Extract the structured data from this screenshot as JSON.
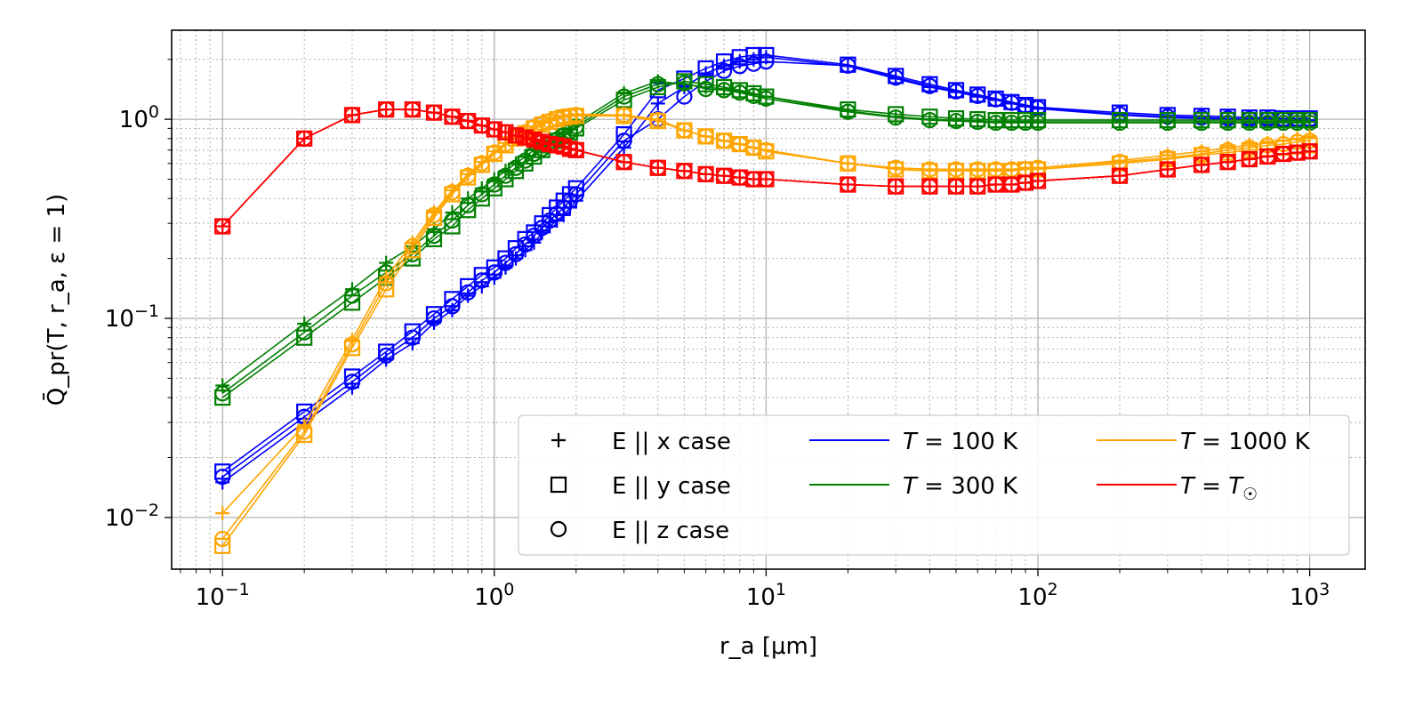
{
  "chart_data": {
    "type": "line",
    "xlabel": "r_a [μm]",
    "ylabel": "Q̄_pr(T, r_a, ε = 1)",
    "xscale": "log",
    "yscale": "log",
    "xlim": [
      0.065,
      1600
    ],
    "ylim": [
      0.0055,
      2.8
    ],
    "grid": true,
    "legend_position": "lower-right",
    "x_ticks": [
      {
        "value": 0.1,
        "base": "10",
        "exp": "−1"
      },
      {
        "value": 1,
        "base": "10",
        "exp": "0"
      },
      {
        "value": 10,
        "base": "10",
        "exp": "1"
      },
      {
        "value": 100,
        "base": "10",
        "exp": "2"
      },
      {
        "value": 1000,
        "base": "10",
        "exp": "3"
      }
    ],
    "y_ticks": [
      {
        "value": 0.01,
        "base": "10",
        "exp": "−2"
      },
      {
        "value": 0.1,
        "base": "10",
        "exp": "−1"
      },
      {
        "value": 1,
        "base": "10",
        "exp": "0"
      }
    ],
    "marker_legend": [
      {
        "marker": "plus",
        "label": "E || x case"
      },
      {
        "marker": "square",
        "label": "E || y case"
      },
      {
        "marker": "circle",
        "label": "E || z case"
      }
    ],
    "x": [
      0.1,
      0.2,
      0.3,
      0.4,
      0.5,
      0.6,
      0.7,
      0.8,
      0.9,
      1,
      1.1,
      1.2,
      1.3,
      1.4,
      1.5,
      1.6,
      1.7,
      1.8,
      1.9,
      2,
      3,
      4,
      5,
      6,
      7,
      8,
      9,
      10,
      20,
      30,
      40,
      50,
      60,
      70,
      80,
      90,
      100,
      200,
      300,
      400,
      500,
      600,
      700,
      800,
      900,
      1000
    ],
    "series": [
      {
        "name": "T = 100 K",
        "color": "#0000ff",
        "case": "x",
        "values": [
          0.015,
          0.03,
          0.045,
          0.062,
          0.075,
          0.095,
          0.11,
          0.13,
          0.145,
          0.16,
          0.18,
          0.2,
          0.22,
          0.24,
          0.27,
          0.29,
          0.31,
          0.33,
          0.36,
          0.39,
          0.72,
          1.2,
          1.45,
          1.7,
          1.85,
          1.95,
          2.0,
          2.05,
          1.85,
          1.6,
          1.45,
          1.37,
          1.3,
          1.25,
          1.2,
          1.16,
          1.13,
          1.05,
          1.02,
          1.01,
          1.0,
          1.0,
          1.0,
          0.99,
          0.99,
          0.99
        ]
      },
      {
        "name": "T = 100 K",
        "color": "#0000ff",
        "case": "y",
        "values": [
          0.017,
          0.034,
          0.051,
          0.068,
          0.086,
          0.105,
          0.125,
          0.145,
          0.165,
          0.18,
          0.2,
          0.225,
          0.25,
          0.27,
          0.3,
          0.33,
          0.36,
          0.39,
          0.42,
          0.45,
          0.84,
          1.4,
          1.6,
          1.8,
          1.95,
          2.05,
          2.1,
          2.1,
          1.88,
          1.65,
          1.5,
          1.4,
          1.33,
          1.27,
          1.22,
          1.18,
          1.15,
          1.08,
          1.05,
          1.04,
          1.03,
          1.02,
          1.02,
          1.01,
          1.01,
          1.01
        ]
      },
      {
        "name": "T = 100 K",
        "color": "#0000ff",
        "case": "z",
        "values": [
          0.016,
          0.032,
          0.048,
          0.065,
          0.08,
          0.1,
          0.115,
          0.135,
          0.155,
          0.17,
          0.19,
          0.21,
          0.235,
          0.26,
          0.285,
          0.31,
          0.335,
          0.36,
          0.39,
          0.42,
          0.78,
          1.0,
          1.3,
          1.55,
          1.75,
          1.85,
          1.9,
          1.95,
          1.86,
          1.62,
          1.47,
          1.38,
          1.31,
          1.26,
          1.21,
          1.17,
          1.14,
          1.06,
          1.03,
          1.02,
          1.01,
          1.0,
          1.0,
          1.0,
          1.0,
          1.0
        ]
      },
      {
        "name": "T = 300 K",
        "color": "#008000",
        "case": "x",
        "values": [
          0.046,
          0.094,
          0.14,
          0.19,
          0.23,
          0.28,
          0.34,
          0.4,
          0.45,
          0.5,
          0.55,
          0.6,
          0.65,
          0.7,
          0.74,
          0.78,
          0.82,
          0.86,
          0.9,
          0.95,
          1.35,
          1.55,
          1.5,
          1.45,
          1.42,
          1.38,
          1.33,
          1.3,
          1.1,
          1.03,
          1.0,
          0.99,
          0.98,
          0.97,
          0.97,
          0.97,
          0.97,
          0.97,
          0.97,
          0.97,
          0.97,
          0.97,
          0.97,
          0.97,
          0.97,
          0.97
        ]
      },
      {
        "name": "T = 300 K",
        "color": "#008000",
        "case": "y",
        "values": [
          0.04,
          0.08,
          0.12,
          0.16,
          0.2,
          0.25,
          0.29,
          0.35,
          0.4,
          0.45,
          0.5,
          0.55,
          0.6,
          0.65,
          0.7,
          0.74,
          0.78,
          0.82,
          0.86,
          0.9,
          1.25,
          1.45,
          1.55,
          1.5,
          1.45,
          1.4,
          1.35,
          1.3,
          1.12,
          1.06,
          1.03,
          1.01,
          1.0,
          0.99,
          0.99,
          0.99,
          0.99,
          0.99,
          0.99,
          0.99,
          0.99,
          0.99,
          0.99,
          0.99,
          0.99,
          0.99
        ]
      },
      {
        "name": "T = 300 K",
        "color": "#008000",
        "case": "z",
        "values": [
          0.042,
          0.085,
          0.13,
          0.17,
          0.21,
          0.26,
          0.31,
          0.37,
          0.42,
          0.47,
          0.52,
          0.57,
          0.62,
          0.67,
          0.71,
          0.75,
          0.79,
          0.83,
          0.87,
          0.92,
          1.3,
          1.5,
          1.52,
          1.42,
          1.4,
          1.36,
          1.31,
          1.27,
          1.09,
          1.02,
          0.99,
          0.98,
          0.97,
          0.96,
          0.96,
          0.96,
          0.96,
          0.96,
          0.96,
          0.96,
          0.96,
          0.96,
          0.96,
          0.96,
          0.96,
          0.96
        ]
      },
      {
        "name": "T = 1000 K",
        "color": "#ffa500",
        "case": "x",
        "values": [
          0.0105,
          0.029,
          0.078,
          0.16,
          0.24,
          0.34,
          0.44,
          0.53,
          0.61,
          0.69,
          0.76,
          0.82,
          0.87,
          0.92,
          0.96,
          0.99,
          1.02,
          1.04,
          1.05,
          1.06,
          1.05,
          1.0,
          0.88,
          0.82,
          0.78,
          0.75,
          0.72,
          0.7,
          0.6,
          0.57,
          0.56,
          0.56,
          0.56,
          0.56,
          0.56,
          0.57,
          0.57,
          0.62,
          0.66,
          0.69,
          0.72,
          0.74,
          0.76,
          0.78,
          0.8,
          0.82
        ]
      },
      {
        "name": "T = 1000 K",
        "color": "#ffa500",
        "case": "y",
        "values": [
          0.0072,
          0.026,
          0.071,
          0.14,
          0.22,
          0.32,
          0.42,
          0.51,
          0.59,
          0.67,
          0.74,
          0.8,
          0.85,
          0.9,
          0.94,
          0.97,
          1.0,
          1.02,
          1.03,
          1.04,
          1.04,
          0.98,
          0.88,
          0.82,
          0.78,
          0.75,
          0.72,
          0.69,
          0.6,
          0.56,
          0.55,
          0.55,
          0.55,
          0.55,
          0.55,
          0.56,
          0.56,
          0.6,
          0.63,
          0.66,
          0.68,
          0.7,
          0.71,
          0.72,
          0.73,
          0.74
        ]
      },
      {
        "name": "T = 1000 K",
        "color": "#ffa500",
        "case": "z",
        "values": [
          0.0078,
          0.027,
          0.074,
          0.15,
          0.23,
          0.33,
          0.43,
          0.52,
          0.6,
          0.68,
          0.75,
          0.81,
          0.86,
          0.91,
          0.95,
          0.98,
          1.01,
          1.03,
          1.04,
          1.05,
          1.05,
          0.99,
          0.88,
          0.82,
          0.78,
          0.75,
          0.72,
          0.7,
          0.6,
          0.57,
          0.56,
          0.56,
          0.56,
          0.56,
          0.56,
          0.56,
          0.57,
          0.61,
          0.64,
          0.67,
          0.7,
          0.72,
          0.74,
          0.75,
          0.77,
          0.78
        ]
      },
      {
        "name": "T = T_☉",
        "color": "#ff0000",
        "case": "x",
        "values": [
          0.29,
          0.8,
          1.05,
          1.12,
          1.12,
          1.08,
          1.03,
          0.98,
          0.93,
          0.89,
          0.86,
          0.83,
          0.81,
          0.79,
          0.77,
          0.75,
          0.74,
          0.73,
          0.71,
          0.7,
          0.61,
          0.57,
          0.55,
          0.53,
          0.52,
          0.51,
          0.5,
          0.5,
          0.47,
          0.46,
          0.46,
          0.46,
          0.46,
          0.47,
          0.47,
          0.48,
          0.49,
          0.52,
          0.56,
          0.59,
          0.61,
          0.63,
          0.65,
          0.67,
          0.68,
          0.69
        ]
      },
      {
        "name": "T = T_☉",
        "color": "#ff0000",
        "case": "y",
        "values": [
          0.29,
          0.8,
          1.05,
          1.12,
          1.12,
          1.08,
          1.03,
          0.98,
          0.93,
          0.89,
          0.86,
          0.83,
          0.81,
          0.79,
          0.77,
          0.75,
          0.74,
          0.73,
          0.71,
          0.7,
          0.61,
          0.57,
          0.55,
          0.53,
          0.52,
          0.51,
          0.5,
          0.5,
          0.47,
          0.46,
          0.46,
          0.46,
          0.46,
          0.47,
          0.47,
          0.48,
          0.49,
          0.52,
          0.56,
          0.59,
          0.61,
          0.63,
          0.65,
          0.67,
          0.68,
          0.69
        ]
      },
      {
        "name": "T = T_☉",
        "color": "#ff0000",
        "case": "z",
        "values": [
          0.29,
          0.8,
          1.05,
          1.12,
          1.12,
          1.08,
          1.03,
          0.98,
          0.93,
          0.89,
          0.86,
          0.83,
          0.81,
          0.79,
          0.77,
          0.75,
          0.74,
          0.73,
          0.71,
          0.7,
          0.61,
          0.57,
          0.55,
          0.53,
          0.52,
          0.51,
          0.5,
          0.5,
          0.47,
          0.46,
          0.46,
          0.46,
          0.46,
          0.47,
          0.47,
          0.48,
          0.49,
          0.52,
          0.56,
          0.59,
          0.61,
          0.63,
          0.65,
          0.67,
          0.68,
          0.69
        ]
      }
    ],
    "color_legend": [
      {
        "color": "#0000ff",
        "prefix": "T",
        "label": " = 100 K"
      },
      {
        "color": "#008000",
        "prefix": "T",
        "label": " = 300 K"
      },
      {
        "color": "#ffa500",
        "prefix": "T",
        "label": " = 1000 K"
      },
      {
        "color": "#ff0000",
        "prefix": "T",
        "label": " = ",
        "suffix": "T",
        "subscript": "☉"
      }
    ]
  }
}
